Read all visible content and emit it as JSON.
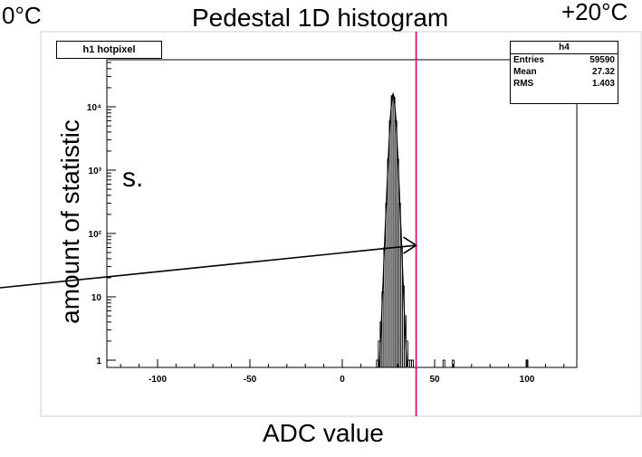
{
  "slide": {
    "title": "Pedestal 1D histogram",
    "temp_left": "0°C",
    "temp_right": "+20°C",
    "y_label": "amount of statistic",
    "fragment": "s."
  },
  "chart_data": {
    "type": "histogram",
    "name": "h1 hotpixel",
    "stats_title": "h4",
    "stats": [
      {
        "label": "Entries",
        "value": "59590"
      },
      {
        "label": "Mean",
        "value": "27.32"
      },
      {
        "label": "RMS",
        "value": "1.403"
      }
    ],
    "xlabel": "ADC value",
    "ylabel": "amount of statistic",
    "xlim": [
      -130,
      130
    ],
    "ylim": [
      0.7,
      40000
    ],
    "yscale": "log",
    "x_ticks": [
      -100,
      -50,
      0,
      50,
      100
    ],
    "x_tick_labels": [
      "-100",
      "-50",
      "0",
      "50",
      "100"
    ],
    "y_ticks": [
      1,
      10,
      100,
      1000,
      10000
    ],
    "y_tick_labels": [
      "1",
      "10",
      "10²",
      "10³",
      "10⁴"
    ],
    "bins": [
      {
        "x": 19,
        "y": 1
      },
      {
        "x": 20,
        "y": 2
      },
      {
        "x": 21,
        "y": 4
      },
      {
        "x": 22,
        "y": 12
      },
      {
        "x": 23,
        "y": 60
      },
      {
        "x": 24,
        "y": 300
      },
      {
        "x": 25,
        "y": 1500
      },
      {
        "x": 26,
        "y": 6000
      },
      {
        "x": 27,
        "y": 15000
      },
      {
        "x": 28,
        "y": 14000
      },
      {
        "x": 29,
        "y": 6000
      },
      {
        "x": 30,
        "y": 1500
      },
      {
        "x": 31,
        "y": 300
      },
      {
        "x": 32,
        "y": 60
      },
      {
        "x": 33,
        "y": 15
      },
      {
        "x": 34,
        "y": 5
      },
      {
        "x": 35,
        "y": 2
      },
      {
        "x": 36,
        "y": 1
      },
      {
        "x": 37,
        "y": 1
      },
      {
        "x": 38,
        "y": 1
      },
      {
        "x": 55,
        "y": 1
      },
      {
        "x": 60,
        "y": 1
      },
      {
        "x": 100,
        "y": 1
      }
    ],
    "fit": [
      {
        "x": 20,
        "y": 0.8
      },
      {
        "x": 21,
        "y": 3
      },
      {
        "x": 22,
        "y": 15
      },
      {
        "x": 23,
        "y": 80
      },
      {
        "x": 24,
        "y": 400
      },
      {
        "x": 25,
        "y": 1800
      },
      {
        "x": 26,
        "y": 6500
      },
      {
        "x": 27,
        "y": 14500
      },
      {
        "x": 27.5,
        "y": 16000
      },
      {
        "x": 28,
        "y": 14500
      },
      {
        "x": 29,
        "y": 6500
      },
      {
        "x": 30,
        "y": 1800
      },
      {
        "x": 31,
        "y": 400
      },
      {
        "x": 32,
        "y": 80
      },
      {
        "x": 33,
        "y": 15
      },
      {
        "x": 34,
        "y": 3
      },
      {
        "x": 35,
        "y": 0.8
      }
    ],
    "threshold_x": 40,
    "threshold_color": "#e0107a",
    "arrow_to": {
      "x": 40,
      "y": 50
    }
  }
}
